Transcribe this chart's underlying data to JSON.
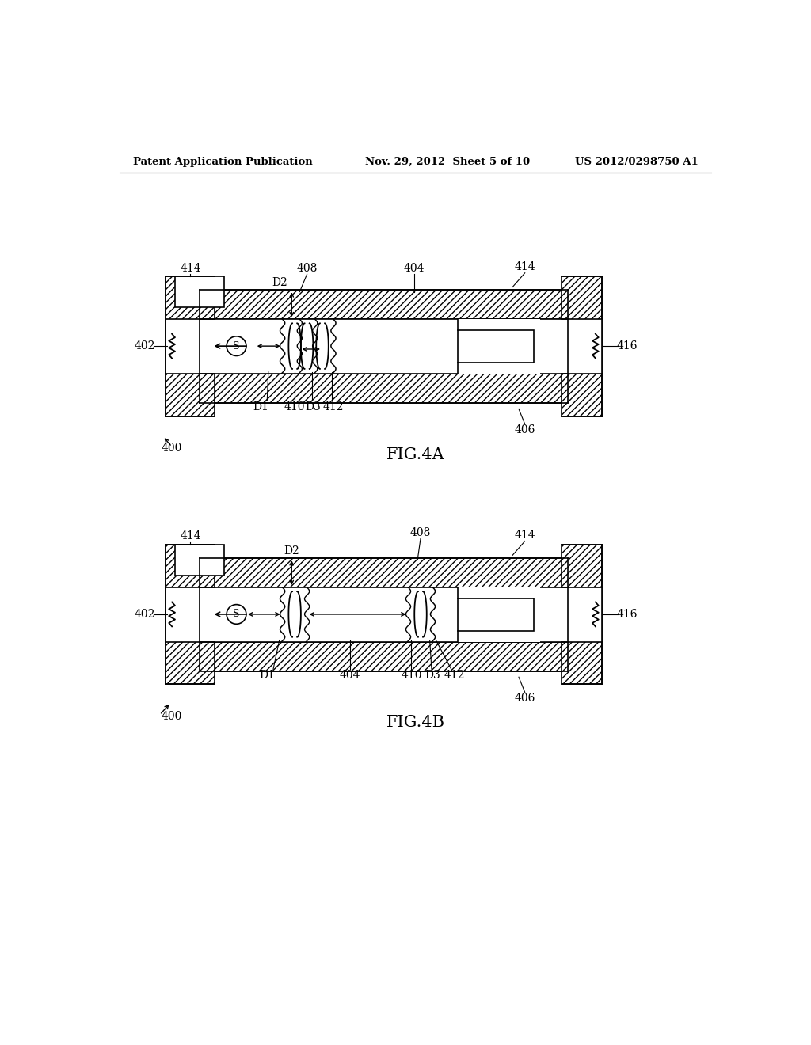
{
  "header_left": "Patent Application Publication",
  "header_mid": "Nov. 29, 2012  Sheet 5 of 10",
  "header_right": "US 2012/0298750 A1",
  "fig4a_label": "FIG.4A",
  "fig4b_label": "FIG.4B",
  "bg_color": "#ffffff",
  "line_color": "#000000"
}
